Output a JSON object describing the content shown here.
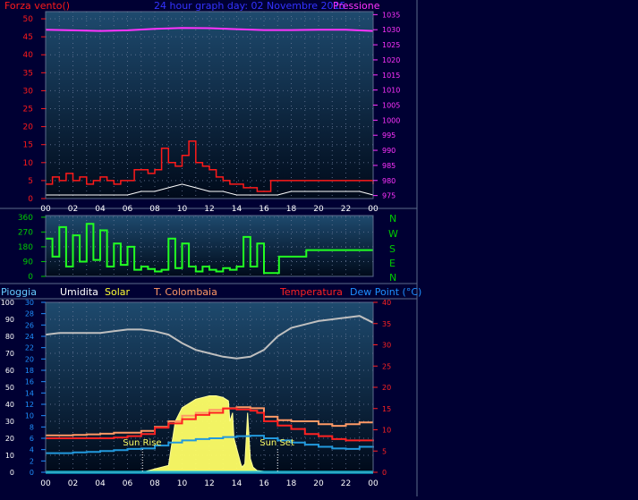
{
  "colors": {
    "background": "#000033",
    "plot_top": "#1e4a6e",
    "plot_bottom": "#000a1a",
    "border": "#5b6b8b",
    "gridline": "#6a7a9a",
    "wind": "#ff1a1a",
    "gust": "#ffffff",
    "wind_green": "#00dd00",
    "pressure": "#ff33ff",
    "direction": "#22ff22",
    "direction_axis": "#00cc00",
    "humidity": "#bfbfbf",
    "solar": "#ffff66",
    "temperature": "#ff2222",
    "t_colombaia": "#ff9966",
    "dew_point": "#2299dd",
    "rain": "#00e5ff",
    "title": "#3333ff",
    "rain_label": "#66ccff",
    "humidity_label": "#ffffff",
    "solar_label": "#ffff33",
    "t_colombaia_label": "#ff9966",
    "temperature_label": "#ff2222",
    "dew_point_label": "#1e90ff"
  },
  "chart_data": [
    {
      "type": "line",
      "title": "24 hour graph day: 02 Novembre 2015",
      "left_axis_label": "Forza vento()",
      "right_axis_label": "Pressione",
      "x_tick_labels": [
        "00",
        "02",
        "04",
        "06",
        "08",
        "10",
        "12",
        "14",
        "16",
        "18",
        "20",
        "22",
        "00"
      ],
      "y_left_ticks": [
        0,
        5,
        10,
        15,
        20,
        25,
        30,
        35,
        40,
        45,
        50
      ],
      "y_right_ticks": [
        975,
        980,
        985,
        990,
        995,
        1000,
        1005,
        1010,
        1015,
        1020,
        1025,
        1030,
        1035
      ],
      "ylim_left": [
        0,
        52
      ],
      "ylim_right": [
        974,
        1036
      ],
      "grid": true,
      "series": [
        {
          "name": "Forza vento",
          "axis": "left",
          "hours": [
            0,
            0.5,
            1,
            1.5,
            2,
            2.5,
            3,
            3.5,
            4,
            4.5,
            5,
            5.5,
            6,
            6.5,
            7,
            7.5,
            8,
            8.5,
            9,
            9.5,
            10,
            10.5,
            11,
            11.5,
            12,
            12.5,
            13,
            13.5,
            14,
            14.5,
            15,
            15.5,
            16,
            16.5,
            17,
            17.5,
            18,
            18.5,
            19,
            19.5,
            20,
            20.5,
            21,
            21.5,
            22,
            22.5,
            23,
            23.5,
            24
          ],
          "values": [
            4,
            6,
            5,
            7,
            5,
            6,
            4,
            5,
            6,
            5,
            4,
            5,
            5,
            8,
            8,
            7,
            8,
            14,
            10,
            9,
            12,
            16,
            10,
            9,
            8,
            6,
            5,
            4,
            4,
            3,
            3,
            2,
            2,
            5,
            5,
            5,
            5,
            5,
            5,
            5,
            5,
            5,
            5,
            5,
            5,
            5,
            5,
            5,
            4
          ]
        },
        {
          "name": "Raffica",
          "axis": "left",
          "hours": [
            0,
            1,
            2,
            3,
            4,
            5,
            6,
            7,
            8,
            9,
            10,
            11,
            12,
            13,
            14,
            15,
            16,
            17,
            18,
            19,
            20,
            21,
            22,
            23,
            24
          ],
          "values": [
            1,
            1,
            1,
            1,
            1,
            1,
            1,
            2,
            2,
            3,
            4,
            3,
            2,
            2,
            1,
            1,
            1,
            1,
            2,
            2,
            2,
            2,
            2,
            2,
            1
          ]
        },
        {
          "name": "Pressione",
          "axis": "right",
          "hours": [
            0,
            2,
            4,
            6,
            8,
            10,
            12,
            14,
            16,
            18,
            20,
            22,
            24
          ],
          "values": [
            1030,
            1029.8,
            1029.6,
            1029.8,
            1030.3,
            1030.6,
            1030.5,
            1030.2,
            1029.9,
            1029.9,
            1030,
            1030,
            1029.6
          ]
        }
      ]
    },
    {
      "type": "line",
      "y_ticks": [
        0,
        90,
        180,
        270,
        360
      ],
      "ylim": [
        0,
        370
      ],
      "compass_labels": [
        "N",
        "W",
        "S",
        "E",
        "N"
      ],
      "grid": true,
      "series": [
        {
          "name": "Direzione vento",
          "hours": [
            0,
            0.5,
            1,
            1.5,
            2,
            2.5,
            3,
            3.5,
            4,
            4.5,
            5,
            5.5,
            6,
            6.5,
            7,
            7.5,
            8,
            8.5,
            9,
            9.5,
            10,
            10.5,
            11,
            11.5,
            12,
            12.5,
            13,
            13.5,
            14,
            14.5,
            15,
            15.5,
            16,
            17,
            17.1,
            19,
            19.1,
            24
          ],
          "values": [
            230,
            120,
            300,
            60,
            250,
            90,
            320,
            100,
            280,
            60,
            200,
            70,
            180,
            40,
            60,
            45,
            30,
            40,
            230,
            50,
            200,
            60,
            30,
            60,
            40,
            30,
            50,
            40,
            60,
            240,
            60,
            200,
            20,
            20,
            120,
            120,
            160,
            160
          ]
        }
      ]
    },
    {
      "type": "line",
      "legend": [
        "Pioggia",
        "Umidita",
        "Solar",
        "T. Colombaia",
        "Temperatura",
        "Dew Point (°C)"
      ],
      "annotations": [
        "Sun Rise",
        "Sun Set"
      ],
      "sunrise_hour": 7.1,
      "sunset_hour": 17.0,
      "x_tick_labels": [
        "00",
        "02",
        "04",
        "06",
        "08",
        "10",
        "12",
        "14",
        "16",
        "18",
        "20",
        "22",
        "00"
      ],
      "y_pct_ticks": [
        0,
        10,
        20,
        30,
        40,
        50,
        60,
        70,
        80,
        90,
        100
      ],
      "y_temp_ticks": [
        0,
        2,
        4,
        6,
        8,
        10,
        12,
        14,
        16,
        18,
        20,
        22,
        24,
        26,
        28,
        30
      ],
      "y_right_ticks": [
        0,
        5,
        10,
        15,
        20,
        25,
        30,
        35,
        40
      ],
      "ylim_pct": [
        0,
        100
      ],
      "ylim_temp": [
        0,
        30
      ],
      "ylim_right": [
        0,
        40
      ],
      "grid": true,
      "series": [
        {
          "name": "Umidita",
          "axis": "pct",
          "hours": [
            0,
            1,
            2,
            3,
            4,
            5,
            6,
            7,
            8,
            9,
            10,
            11,
            12,
            13,
            14,
            15,
            16,
            17,
            18,
            19,
            20,
            21,
            22,
            23,
            24
          ],
          "values": [
            81,
            82,
            82,
            82,
            82,
            83,
            84,
            84,
            83,
            81,
            76,
            72,
            70,
            68,
            67,
            68,
            72,
            80,
            85,
            87,
            89,
            90,
            91,
            92,
            88
          ]
        },
        {
          "name": "Solar",
          "axis": "pct",
          "hours": [
            7.1,
            8,
            9,
            9.5,
            10,
            11,
            12,
            12.5,
            13,
            13.4,
            13.5,
            13.7,
            13.8,
            14,
            14.3,
            14.4,
            14.6,
            14.7,
            14.8,
            15,
            15.2,
            15.5,
            16,
            16.5,
            17
          ],
          "values": [
            0,
            2,
            4,
            30,
            38,
            43,
            45,
            45,
            44,
            42,
            30,
            35,
            20,
            14,
            5,
            3,
            5,
            20,
            35,
            8,
            3,
            1,
            0.5,
            0.2,
            0
          ]
        },
        {
          "name": "T. Colombaia",
          "axis": "temp",
          "hours": [
            0,
            1,
            2,
            3,
            4,
            5,
            6,
            7,
            8,
            9,
            10,
            11,
            12,
            13,
            14,
            15,
            16,
            17,
            18,
            19,
            20,
            21,
            22,
            23,
            24
          ],
          "values": [
            6.5,
            6.5,
            6.6,
            6.7,
            6.8,
            7,
            7,
            7.3,
            8,
            9,
            10,
            10.5,
            11,
            11.3,
            11.5,
            11.3,
            9.8,
            9.2,
            9,
            9,
            8.5,
            8.2,
            8.5,
            8.8,
            8.8
          ]
        },
        {
          "name": "Temperatura",
          "axis": "right",
          "hours": [
            0,
            1,
            2,
            3,
            4,
            5,
            6,
            7,
            8,
            9,
            10,
            11,
            12,
            13,
            14,
            15,
            15.5,
            16,
            17,
            18,
            19,
            20,
            21,
            22,
            23,
            24
          ],
          "values": [
            8,
            8,
            8,
            8,
            8,
            8.2,
            8.5,
            9,
            10.5,
            11.5,
            12.5,
            13.5,
            14,
            15,
            14.8,
            14.5,
            14,
            12,
            11,
            10.2,
            9,
            8.5,
            7.8,
            7.5,
            7.5,
            7.7
          ]
        },
        {
          "name": "Dew Point",
          "axis": "right",
          "hours": [
            0,
            1,
            2,
            3,
            4,
            5,
            6,
            7,
            8,
            9,
            10,
            11,
            12,
            13,
            14,
            15,
            16,
            17,
            18,
            19,
            20,
            21,
            22,
            23,
            24
          ],
          "values": [
            4.5,
            4.5,
            4.7,
            4.8,
            5,
            5.2,
            5.5,
            5.6,
            6.3,
            7,
            7.5,
            7.8,
            8,
            8.3,
            8.5,
            8.6,
            8,
            7.5,
            7,
            6.5,
            6,
            5.6,
            5.5,
            6,
            6.2
          ]
        },
        {
          "name": "Pioggia",
          "axis": "pct",
          "hours": [
            0,
            24
          ],
          "values": [
            0,
            0
          ]
        }
      ]
    }
  ]
}
